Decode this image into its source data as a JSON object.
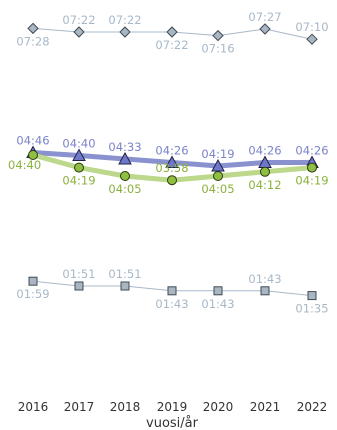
{
  "chart_data": {
    "type": "line",
    "xlabel": "vuosi/år",
    "categories": [
      "2016",
      "2017",
      "2018",
      "2019",
      "2020",
      "2021",
      "2022"
    ],
    "series": [
      {
        "id": "top",
        "marker": "diamond",
        "color": "#a8b8c8",
        "fill": "#aab6c2",
        "stroke_width": 1,
        "labels": [
          "07:28",
          "07:22",
          "07:22",
          "07:22",
          "07:16",
          "07:27",
          "07:10"
        ],
        "label_pos": [
          "below",
          "above",
          "above",
          "below",
          "below",
          "above",
          "above"
        ]
      },
      {
        "id": "blue",
        "marker": "triangle",
        "color": "#8a91cf",
        "fill": "#6f77c8",
        "label_color": "#7c84c9",
        "stroke_width": 5,
        "labels": [
          "04:46",
          "04:40",
          "04:33",
          "04:26",
          "04:19",
          "04:26",
          "04:26"
        ],
        "label_pos": [
          "above",
          "above",
          "above",
          "above",
          "above",
          "above",
          "above"
        ]
      },
      {
        "id": "green",
        "marker": "circle",
        "color": "#bcd88a",
        "fill": "#8fbe43",
        "label_color": "#8ab23c",
        "stroke_width": 5,
        "labels": [
          "04:40",
          "04:19",
          "04:05",
          "03:58",
          "04:05",
          "04:12",
          "04:19"
        ],
        "label_pos": [
          "left",
          "below",
          "below",
          "above",
          "below",
          "below",
          "below"
        ]
      },
      {
        "id": "bottom",
        "marker": "square",
        "color": "#a8b8c8",
        "fill": "#aab6c2",
        "stroke_width": 1,
        "labels": [
          "01:59",
          "01:51",
          "01:51",
          "01:43",
          "01:43",
          "01:43",
          "01:35"
        ],
        "label_pos": [
          "below",
          "above",
          "above",
          "below",
          "below",
          "above",
          "below"
        ]
      }
    ]
  }
}
